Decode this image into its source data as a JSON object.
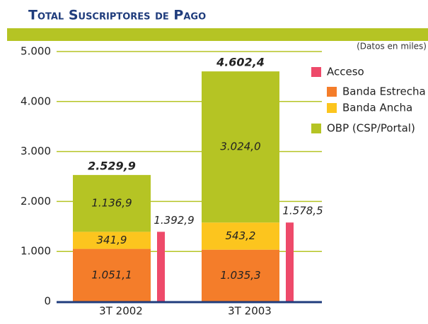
{
  "chart_data": {
    "type": "bar",
    "title": "Total Suscriptores de Pago",
    "subtitle": "(Datos en miles)",
    "categories": [
      "3T 2002",
      "3T 2003"
    ],
    "series": [
      {
        "name": "Acceso",
        "color": "#ee4a6a",
        "stacked": false,
        "values": [
          1392.9,
          1578.5
        ],
        "value_labels": [
          "1.392,9",
          "1.578,5"
        ]
      },
      {
        "name": "Banda Estrecha",
        "color": "#f47d2a",
        "values": [
          1051.1,
          1035.3
        ],
        "value_labels": [
          "1.051,1",
          "1.035,3"
        ]
      },
      {
        "name": "Banda Ancha",
        "color": "#fcc51e",
        "values": [
          341.9,
          543.2
        ],
        "value_labels": [
          "341,9",
          "543,2"
        ]
      },
      {
        "name": "OBP (CSP/Portal)",
        "color": "#b5c424",
        "values": [
          1136.9,
          3024.0
        ],
        "value_labels": [
          "1.136,9",
          "3.024,0"
        ]
      }
    ],
    "totals": [
      2529.9,
      4602.4
    ],
    "total_labels": [
      "2.529,9",
      "4.602,4"
    ],
    "ylim": [
      0,
      5000
    ],
    "yticks": [
      0,
      {
        "value": 1000,
        "label": "1.000"
      },
      {
        "value": 2000,
        "label": "2.000"
      },
      {
        "value": 3000,
        "label": "3.000"
      },
      {
        "value": 4000,
        "label": "4.000"
      },
      {
        "value": 5000,
        "label": "5.000"
      }
    ],
    "grid": true
  }
}
